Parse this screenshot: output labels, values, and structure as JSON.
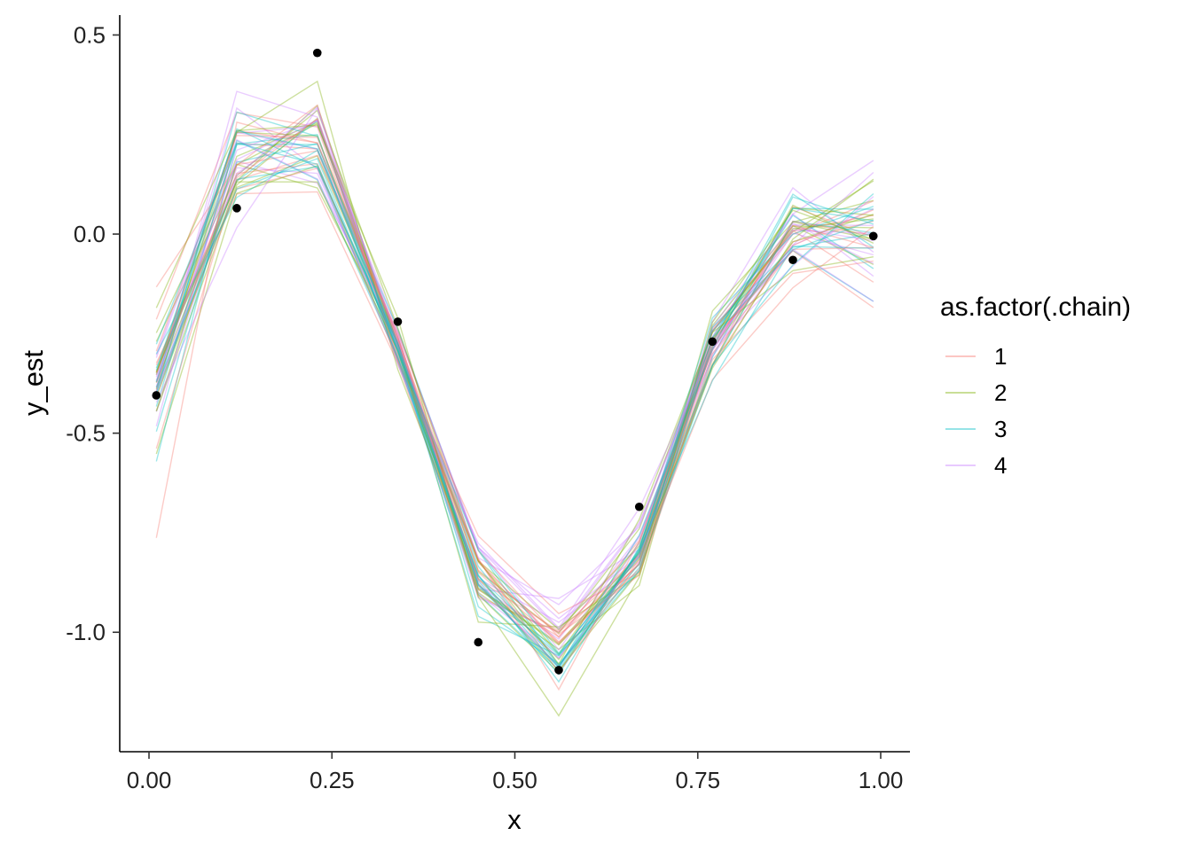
{
  "chart_data": {
    "type": "line",
    "xlabel": "x",
    "ylabel": "y_est",
    "xlim": [
      -0.04,
      1.04
    ],
    "ylim": [
      -1.3,
      0.55
    ],
    "x_ticks": [
      0,
      0.25,
      0.5,
      0.75,
      1
    ],
    "x_tick_labels": [
      "0.00",
      "0.25",
      "0.50",
      "0.75",
      "1.00"
    ],
    "y_ticks": [
      0.5,
      0,
      -0.5,
      -1
    ],
    "y_tick_labels": [
      "0.5",
      "0.0",
      "-0.5",
      "-1.0"
    ],
    "grid": false,
    "legend": {
      "title": "as.factor(.chain)",
      "placement": "right",
      "entries": [
        "1",
        "2",
        "3",
        "4"
      ]
    },
    "chain_colors": {
      "1": "#F8766D",
      "2": "#7CAE00",
      "3": "#00BFC4",
      "4": "#C77CFF"
    },
    "draws_per_chain": 12,
    "x": [
      0.01,
      0.12,
      0.23,
      0.34,
      0.45,
      0.56,
      0.67,
      0.77,
      0.88,
      0.99
    ],
    "observed": [
      -0.405,
      0.065,
      0.455,
      -0.22,
      -1.025,
      -1.095,
      -0.685,
      -0.27,
      -0.065,
      -0.005
    ],
    "fit_mean": [
      -0.38,
      0.2,
      0.22,
      -0.28,
      -0.86,
      -1.04,
      -0.8,
      -0.28,
      0.01,
      0.0
    ],
    "fit_spread": [
      0.11,
      0.07,
      0.06,
      0.03,
      0.05,
      0.05,
      0.04,
      0.04,
      0.05,
      0.08
    ]
  }
}
